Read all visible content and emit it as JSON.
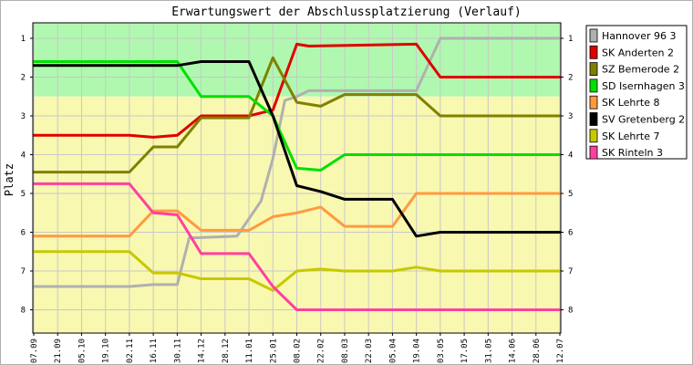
{
  "chart_data": {
    "type": "line",
    "title": "Erwartungswert der Abschlussplatzierung (Verlauf)",
    "ylabel": "Platz",
    "xlabel": "",
    "ylim": [
      0.6,
      8.6
    ],
    "y_inverted": true,
    "y_ticks": [
      "1",
      "2",
      "3",
      "4",
      "5",
      "6",
      "7",
      "8"
    ],
    "categories": [
      "07.09",
      "21.09",
      "05.10",
      "19.10",
      "02.11",
      "16.11",
      "30.11",
      "14.12",
      "28.12",
      "11.01",
      "25.01",
      "08.02",
      "22.02",
      "08.03",
      "22.03",
      "05.04",
      "19.04",
      "03.05",
      "17.05",
      "31.05",
      "14.06",
      "28.06",
      "12.07"
    ],
    "bands": [
      {
        "from": 0.6,
        "to": 2.5,
        "color": "#b0f8b0"
      },
      {
        "from": 2.5,
        "to": 8.6,
        "color": "#f8f8b0"
      }
    ],
    "grid": true,
    "legend_position": "right",
    "series": [
      {
        "name": "Hannover 96 3",
        "color": "#b0b0b0",
        "points": [
          [
            0,
            7.4
          ],
          [
            4,
            7.4
          ],
          [
            5,
            7.35
          ],
          [
            6,
            7.35
          ],
          [
            6.5,
            6.15
          ],
          [
            8.5,
            6.1
          ],
          [
            9.5,
            5.2
          ],
          [
            10,
            4.1
          ],
          [
            10.5,
            2.6
          ],
          [
            11,
            2.5
          ],
          [
            11.5,
            2.35
          ],
          [
            16,
            2.35
          ],
          [
            17,
            1.0
          ],
          [
            22,
            1.0
          ]
        ]
      },
      {
        "name": "SK Anderten 2",
        "color": "#e00000",
        "points": [
          [
            0,
            3.5
          ],
          [
            4,
            3.5
          ],
          [
            5,
            3.55
          ],
          [
            6,
            3.5
          ],
          [
            7,
            3.0
          ],
          [
            9,
            3.0
          ],
          [
            10,
            2.85
          ],
          [
            11,
            1.15
          ],
          [
            11.5,
            1.2
          ],
          [
            16,
            1.15
          ],
          [
            17,
            2.0
          ],
          [
            22,
            2.0
          ]
        ]
      },
      {
        "name": "SZ Bemerode 2",
        "color": "#808000",
        "points": [
          [
            0,
            4.45
          ],
          [
            4,
            4.45
          ],
          [
            5,
            3.8
          ],
          [
            6,
            3.8
          ],
          [
            7,
            3.05
          ],
          [
            9,
            3.05
          ],
          [
            10,
            1.5
          ],
          [
            11,
            2.65
          ],
          [
            12,
            2.75
          ],
          [
            13,
            2.45
          ],
          [
            16,
            2.45
          ],
          [
            17,
            3.0
          ],
          [
            22,
            3.0
          ]
        ]
      },
      {
        "name": "SD Isernhagen 3",
        "color": "#00e000",
        "points": [
          [
            0,
            1.6
          ],
          [
            6,
            1.6
          ],
          [
            7,
            2.5
          ],
          [
            9,
            2.5
          ],
          [
            10,
            3.0
          ],
          [
            11,
            4.35
          ],
          [
            12,
            4.4
          ],
          [
            13,
            4.0
          ],
          [
            22,
            4.0
          ]
        ]
      },
      {
        "name": "SK Lehrte 8",
        "color": "#ff9a40",
        "points": [
          [
            0,
            6.1
          ],
          [
            4,
            6.1
          ],
          [
            5,
            5.45
          ],
          [
            6,
            5.45
          ],
          [
            7,
            5.95
          ],
          [
            9,
            5.95
          ],
          [
            10,
            5.6
          ],
          [
            11,
            5.5
          ],
          [
            12,
            5.35
          ],
          [
            13,
            5.85
          ],
          [
            15,
            5.85
          ],
          [
            16,
            5.0
          ],
          [
            22,
            5.0
          ]
        ]
      },
      {
        "name": "SV Gretenberg 2",
        "color": "#000000",
        "points": [
          [
            0,
            1.7
          ],
          [
            6,
            1.7
          ],
          [
            7,
            1.6
          ],
          [
            9,
            1.6
          ],
          [
            10,
            3.0
          ],
          [
            11,
            4.8
          ],
          [
            12,
            4.95
          ],
          [
            13,
            5.15
          ],
          [
            15,
            5.15
          ],
          [
            16,
            6.1
          ],
          [
            17,
            6.0
          ],
          [
            22,
            6.0
          ]
        ]
      },
      {
        "name": "SK Lehrte 7",
        "color": "#c8c800",
        "points": [
          [
            0,
            6.5
          ],
          [
            4,
            6.5
          ],
          [
            5,
            7.05
          ],
          [
            6,
            7.05
          ],
          [
            7,
            7.2
          ],
          [
            9,
            7.2
          ],
          [
            10,
            7.5
          ],
          [
            11,
            7.0
          ],
          [
            12,
            6.95
          ],
          [
            13,
            7.0
          ],
          [
            15,
            7.0
          ],
          [
            16,
            6.9
          ],
          [
            17,
            7.0
          ],
          [
            22,
            7.0
          ]
        ]
      },
      {
        "name": "SK Rinteln 3",
        "color": "#ff40a0",
        "points": [
          [
            0,
            4.75
          ],
          [
            4,
            4.75
          ],
          [
            5,
            5.5
          ],
          [
            6,
            5.55
          ],
          [
            7,
            6.55
          ],
          [
            9,
            6.55
          ],
          [
            10,
            7.4
          ],
          [
            11,
            8.0
          ],
          [
            22,
            8.0
          ]
        ]
      }
    ]
  }
}
